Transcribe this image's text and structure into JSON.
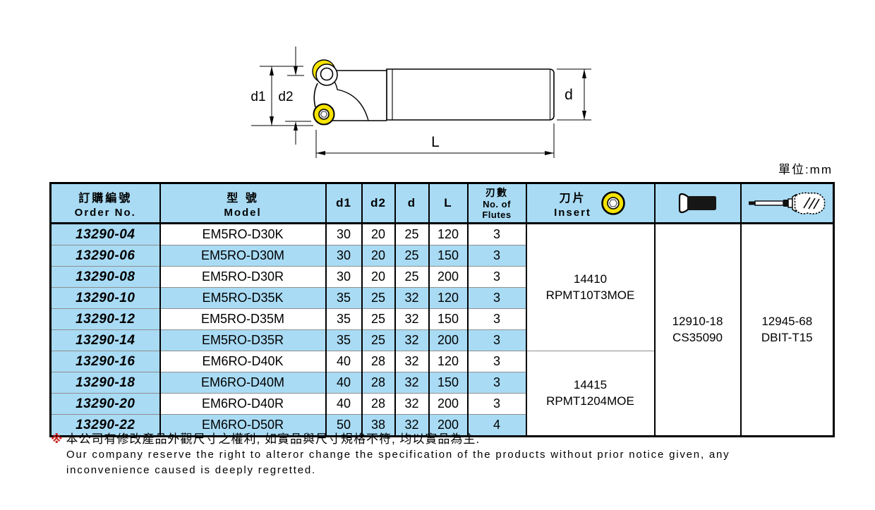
{
  "unit_label": "單位:mm",
  "diagram": {
    "labels": {
      "d1": "d1",
      "d2": "d2",
      "d": "d",
      "L": "L"
    },
    "insert_color": "#f5e300"
  },
  "icons": {
    "insert": "round-insert-icon",
    "screw": "screw-icon",
    "driver": "torx-driver-icon"
  },
  "table": {
    "colors": {
      "header_bg": "#a9dbf4",
      "stripe_bg": "#a9dbf4",
      "row_line": "#8f8f8f"
    },
    "header": {
      "order_no_zh": "訂購編號",
      "order_no_en": "Order No.",
      "model_zh": "型 號",
      "model_en": "Model",
      "d1": "d1",
      "d2": "d2",
      "d": "d",
      "L": "L",
      "flutes_zh": "刃數",
      "flutes_en1": "No. of",
      "flutes_en2": "Flutes",
      "insert_zh": "刀片",
      "insert_en": "Insert"
    },
    "rows": [
      {
        "order": "13290-04",
        "model": "EM5RO-D30K",
        "d1": "30",
        "d2": "20",
        "d": "25",
        "L": "120",
        "flutes": "3"
      },
      {
        "order": "13290-06",
        "model": "EM5RO-D30M",
        "d1": "30",
        "d2": "20",
        "d": "25",
        "L": "150",
        "flutes": "3"
      },
      {
        "order": "13290-08",
        "model": "EM5RO-D30R",
        "d1": "30",
        "d2": "20",
        "d": "25",
        "L": "200",
        "flutes": "3"
      },
      {
        "order": "13290-10",
        "model": "EM5RO-D35K",
        "d1": "35",
        "d2": "25",
        "d": "32",
        "L": "120",
        "flutes": "3"
      },
      {
        "order": "13290-12",
        "model": "EM5RO-D35M",
        "d1": "35",
        "d2": "25",
        "d": "32",
        "L": "150",
        "flutes": "3"
      },
      {
        "order": "13290-14",
        "model": "EM5RO-D35R",
        "d1": "35",
        "d2": "25",
        "d": "32",
        "L": "200",
        "flutes": "3"
      },
      {
        "order": "13290-16",
        "model": "EM6RO-D40K",
        "d1": "40",
        "d2": "28",
        "d": "32",
        "L": "120",
        "flutes": "3"
      },
      {
        "order": "13290-18",
        "model": "EM6RO-D40M",
        "d1": "40",
        "d2": "28",
        "d": "32",
        "L": "150",
        "flutes": "3"
      },
      {
        "order": "13290-20",
        "model": "EM6RO-D40R",
        "d1": "40",
        "d2": "28",
        "d": "32",
        "L": "200",
        "flutes": "3"
      },
      {
        "order": "13290-22",
        "model": "EM6RO-D50R",
        "d1": "50",
        "d2": "38",
        "d": "32",
        "L": "200",
        "flutes": "4"
      }
    ],
    "insert_groups": [
      {
        "code": "14410",
        "name": "RPMT10T3MOE",
        "rows": 6
      },
      {
        "code": "14415",
        "name": "RPMT1204MOE",
        "rows": 4
      }
    ],
    "screw": {
      "code": "12910-18",
      "name": "CS35090"
    },
    "driver": {
      "code": "12945-68",
      "name": "DBIT-T15"
    }
  },
  "footnote": {
    "mark": "※",
    "line1": "本公司有修改產品外觀尺寸之權利, 如實品與尺寸規格不符, 均以實品為主.",
    "line2": "Our company reserve the right to alteror change the specification of the products without prior notice given, any",
    "line3": "inconvenience caused is deeply regretted."
  }
}
